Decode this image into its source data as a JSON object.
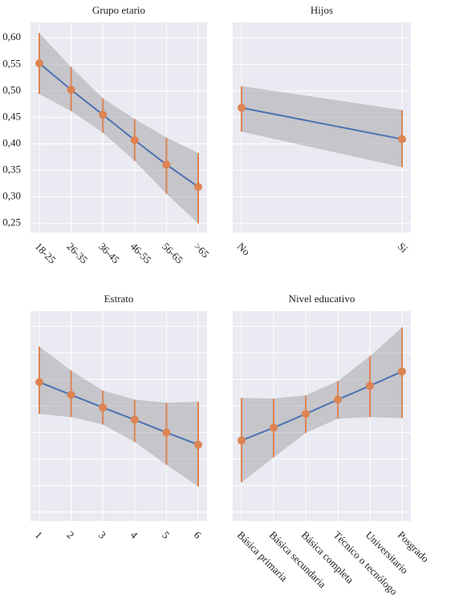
{
  "chart_data": [
    {
      "type": "line",
      "title": "Grupo etario",
      "categories": [
        "18-25",
        "26-35",
        "36-45",
        "46-55",
        "56-65",
        ">65"
      ],
      "values": [
        0.552,
        0.502,
        0.455,
        0.407,
        0.361,
        0.319
      ],
      "lower": [
        0.494,
        0.462,
        0.421,
        0.368,
        0.306,
        0.25
      ],
      "upper": [
        0.609,
        0.545,
        0.486,
        0.447,
        0.412,
        0.383
      ],
      "ylim": [
        0.233,
        0.629
      ],
      "yticks": [
        {
          "value": 0.25,
          "label": "0,25"
        },
        {
          "value": 0.3,
          "label": "0,30"
        },
        {
          "value": 0.35,
          "label": "0,35"
        },
        {
          "value": 0.4,
          "label": "0,40"
        },
        {
          "value": 0.45,
          "label": "0,45"
        },
        {
          "value": 0.5,
          "label": "0,50"
        },
        {
          "value": 0.55,
          "label": "0,55"
        },
        {
          "value": 0.6,
          "label": "0,60"
        }
      ],
      "line_color": "#4c72b0",
      "point_color": "#dd8452",
      "band_color": "#999999",
      "grid": true
    },
    {
      "type": "line",
      "title": "Hijos",
      "categories": [
        "No",
        "Sí"
      ],
      "values": [
        0.468,
        0.409
      ],
      "lower": [
        0.423,
        0.356
      ],
      "upper": [
        0.509,
        0.464
      ],
      "ylim": [
        0.233,
        0.629
      ],
      "yticks": [
        0.25,
        0.3,
        0.35,
        0.4,
        0.45,
        0.5,
        0.55,
        0.6
      ],
      "line_color": "#4c72b0",
      "point_color": "#dd8452",
      "band_color": "#999999",
      "grid": true
    },
    {
      "type": "line",
      "title": "Estrato",
      "categories": [
        "1",
        "2",
        "3",
        "4",
        "5",
        "6"
      ],
      "values": [
        0.495,
        0.471,
        0.447,
        0.424,
        0.4,
        0.377
      ],
      "lower": [
        0.435,
        0.429,
        0.415,
        0.382,
        0.339,
        0.298
      ],
      "upper": [
        0.562,
        0.517,
        0.479,
        0.462,
        0.456,
        0.458
      ],
      "ylim": [
        0.233,
        0.629
      ],
      "yticks": [
        0.25,
        0.3,
        0.35,
        0.4,
        0.45,
        0.5,
        0.55,
        0.6
      ],
      "line_color": "#4c72b0",
      "point_color": "#dd8452",
      "band_color": "#999999",
      "grid": true
    },
    {
      "type": "line",
      "title": "Nivel educativo",
      "categories": [
        "Básica primaria",
        "Básica secundaria",
        "Básica completa",
        "Técnico o tecnólogo",
        "Universitario",
        "Posgrado"
      ],
      "values": [
        0.385,
        0.409,
        0.435,
        0.462,
        0.488,
        0.515
      ],
      "lower": [
        0.306,
        0.353,
        0.399,
        0.426,
        0.429,
        0.427
      ],
      "upper": [
        0.465,
        0.464,
        0.47,
        0.497,
        0.544,
        0.598
      ],
      "ylim": [
        0.233,
        0.629
      ],
      "yticks": [
        0.25,
        0.3,
        0.35,
        0.4,
        0.45,
        0.5,
        0.55,
        0.6
      ],
      "line_color": "#4c72b0",
      "point_color": "#dd8452",
      "band_color": "#999999",
      "grid": true
    }
  ]
}
